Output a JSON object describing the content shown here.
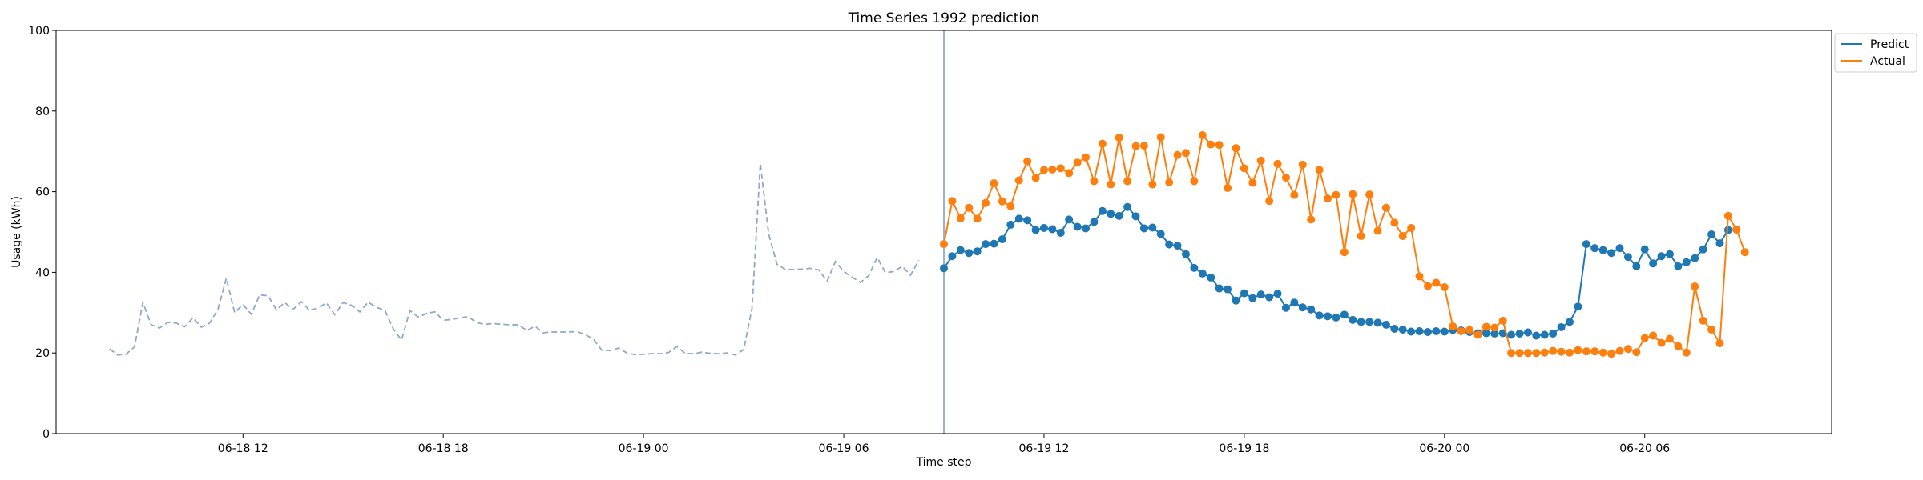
{
  "chart_data": {
    "type": "line",
    "title": "Time Series 1992 prediction",
    "xlabel": "Time step",
    "ylabel": "Usage (kWh)",
    "ylim": [
      0,
      100
    ],
    "yticks": [
      0,
      20,
      40,
      60,
      80,
      100
    ],
    "xlim": [
      "2023-06-18 06:24",
      "2023-06-20 11:36"
    ],
    "xticks": [
      {
        "t": "2023-06-18 12:00",
        "label": "06-18 12"
      },
      {
        "t": "2023-06-18 18:00",
        "label": "06-18 18"
      },
      {
        "t": "2023-06-19 00:00",
        "label": "06-19 00"
      },
      {
        "t": "2023-06-19 06:00",
        "label": "06-19 06"
      },
      {
        "t": "2023-06-19 12:00",
        "label": "06-19 12"
      },
      {
        "t": "2023-06-19 18:00",
        "label": "06-19 18"
      },
      {
        "t": "2023-06-20 00:00",
        "label": "06-20 00"
      },
      {
        "t": "2023-06-20 06:00",
        "label": "06-20 06"
      }
    ],
    "legend_position": "upper-right-outside",
    "grid": false,
    "vline": {
      "t": "2023-06-19 09:00",
      "color": "#7f96c4"
    },
    "history": {
      "start": "2023-06-18 08:00",
      "interval_minutes": 15,
      "style": "dashed",
      "color": "#8fa8cb",
      "values": [
        21,
        19.5,
        19.7,
        21.5,
        32.5,
        27,
        26.2,
        27.6,
        27.4,
        26.5,
        28.7,
        26.4,
        27.4,
        30.8,
        38.5,
        30,
        32,
        29.6,
        34.4,
        34.2,
        30.7,
        32.5,
        30.8,
        32.7,
        30.5,
        31.2,
        32.4,
        29.5,
        32.5,
        31.8,
        30.2,
        32.6,
        31.3,
        30.6,
        26,
        23.2,
        30.5,
        28.9,
        29.8,
        30.2,
        28.1,
        28.3,
        28.7,
        29,
        27.5,
        27.1,
        27.3,
        27.1,
        27,
        27,
        25.6,
        26.6,
        25,
        25.2,
        25.2,
        25.2,
        25.3,
        24.6,
        23.4,
        20.7,
        20.6,
        21.2,
        20,
        19.6,
        19.7,
        19.8,
        19.8,
        20.1,
        21.6,
        19.9,
        19.8,
        20.2,
        19.9,
        19.8,
        20,
        19.5,
        20.8,
        31,
        67,
        49.5,
        42,
        40.7,
        40.7,
        40.8,
        41,
        40.6,
        37.8,
        42.7,
        40.2,
        38.8,
        37.5,
        39.2,
        43.7,
        39.9,
        40.2,
        41.5,
        39.3,
        43
      ]
    },
    "series": [
      {
        "name": "Predict",
        "color": "#1f77b4",
        "start": "2023-06-19 09:00",
        "interval_minutes": 15,
        "values": [
          41,
          44,
          45.5,
          44.8,
          45.2,
          47,
          47.1,
          48.2,
          51.8,
          53.3,
          52.9,
          50.5,
          51,
          50.7,
          49.8,
          53.1,
          51.3,
          50.9,
          52.5,
          55.2,
          54.5,
          54,
          56.2,
          53.9,
          50.9,
          51.1,
          49.5,
          46.9,
          46.6,
          44.5,
          41.1,
          39.7,
          38.7,
          36,
          35.8,
          33,
          34.8,
          33.6,
          34.5,
          33.8,
          34.7,
          31.2,
          32.5,
          31.3,
          30.8,
          29.3,
          29.1,
          28.8,
          29.5,
          28.2,
          27.7,
          27.7,
          27.5,
          27,
          26,
          25.8,
          25.3,
          25.4,
          25.2,
          25.4,
          25.3,
          25.7,
          25.6,
          25.2,
          24.9,
          24.9,
          24.8,
          24.9,
          24.5,
          24.8,
          25.1,
          24.3,
          24.5,
          24.8,
          26.4,
          27.7,
          31.5,
          47,
          46,
          45.5,
          44.8,
          46,
          43.8,
          41.5,
          45.7,
          42.2,
          44,
          44.5,
          41.5,
          42.5,
          43.5,
          45.7,
          49.4,
          47.2,
          50.5,
          50.6
        ]
      },
      {
        "name": "Actual",
        "color": "#ff7f0e",
        "start": "2023-06-19 09:00",
        "interval_minutes": 15,
        "values": [
          47,
          57.7,
          53.4,
          56,
          53.3,
          57.2,
          62.1,
          57.6,
          56.4,
          62.8,
          67.5,
          63.4,
          65.4,
          65.5,
          65.8,
          64.6,
          67.2,
          68.5,
          62.6,
          71.9,
          61.8,
          73.4,
          62.6,
          71.3,
          71.4,
          61.8,
          73.5,
          62.3,
          69.1,
          69.6,
          62.6,
          74,
          71.7,
          71.6,
          60.9,
          70.8,
          65.8,
          62.2,
          67.7,
          57.7,
          66.9,
          63.5,
          59.2,
          66.7,
          53.1,
          65.4,
          58.3,
          59.2,
          45,
          59.4,
          49,
          59.3,
          50.3,
          56,
          52.3,
          49,
          51,
          39,
          36.6,
          37.4,
          36.3,
          26.6,
          25.4,
          25.7,
          24.5,
          26.5,
          26.3,
          28,
          20,
          20,
          20,
          20,
          20.1,
          20.5,
          20.3,
          20.1,
          20.7,
          20.4,
          20.4,
          20.1,
          19.8,
          20.5,
          21,
          20.2,
          23.7,
          24.3,
          22.5,
          23.5,
          21.7,
          20.1,
          36.5,
          28,
          25.8,
          22.4,
          54,
          50.6,
          45
        ]
      }
    ]
  }
}
